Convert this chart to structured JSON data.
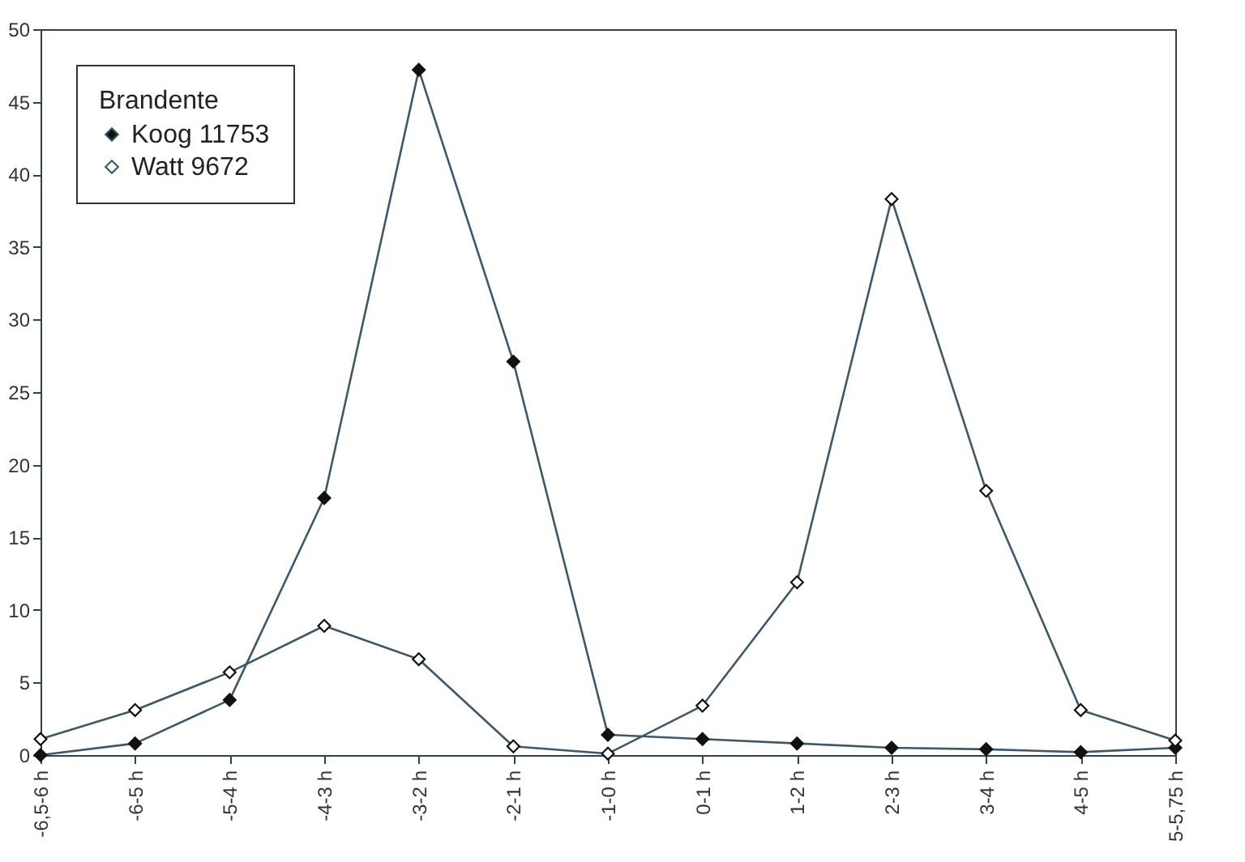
{
  "chart_data": {
    "type": "line",
    "legend_title": "Brandente",
    "legend": "top left",
    "marker": "diamond",
    "grid": false,
    "categories": [
      "-6,5-6 h",
      "-6-5 h",
      "-5-4 h",
      "-4-3 h",
      "-3-2 h",
      "-2-1 h",
      "-1-0 h",
      "0-1 h",
      "1-2 h",
      "2-3 h",
      "3-4 h",
      "4-5 h",
      "5-5,75 h"
    ],
    "ylim": [
      0,
      50
    ],
    "yticks": [
      0,
      5,
      10,
      15,
      20,
      25,
      30,
      35,
      40,
      45,
      50
    ],
    "series": [
      {
        "name": "Koog 11753",
        "color": "#3d5868",
        "values": [
          0,
          0.8,
          3.8,
          17.7,
          47.2,
          27.1,
          1.4,
          1.1,
          0.8,
          0.5,
          0.4,
          0.2,
          0.5
        ]
      },
      {
        "name": "Watt   9672",
        "color": "#3d5868",
        "values": [
          1.1,
          3.1,
          5.7,
          8.9,
          6.6,
          0.6,
          0.1,
          3.4,
          11.9,
          38.3,
          18.2,
          3.1,
          1.0
        ]
      }
    ]
  }
}
